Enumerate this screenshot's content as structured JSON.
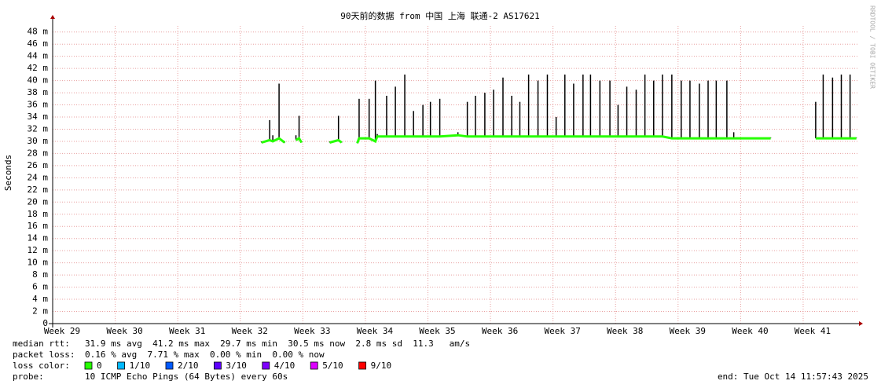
{
  "chart_data": {
    "type": "line",
    "title": "90天前的数据 from 中国 上海 联通-2 AS17621",
    "y_label": "Seconds",
    "watermark": "RRDTOOL / TOBI OETIKER",
    "grid": true,
    "xlim": [
      29,
      41.88
    ],
    "xticks": [
      {
        "value": 29,
        "label": "Week 29"
      },
      {
        "value": 30,
        "label": "Week 30"
      },
      {
        "value": 31,
        "label": "Week 31"
      },
      {
        "value": 32,
        "label": "Week 32"
      },
      {
        "value": 33,
        "label": "Week 33"
      },
      {
        "value": 34,
        "label": "Week 34"
      },
      {
        "value": 35,
        "label": "Week 35"
      },
      {
        "value": 36,
        "label": "Week 36"
      },
      {
        "value": 37,
        "label": "Week 37"
      },
      {
        "value": 38,
        "label": "Week 38"
      },
      {
        "value": 39,
        "label": "Week 39"
      },
      {
        "value": 40,
        "label": "Week 40"
      },
      {
        "value": 41,
        "label": "Week 41"
      }
    ],
    "ylim": [
      0,
      0.049
    ],
    "yticks": [
      0,
      {
        "value": 0.002,
        "label": "2 m"
      },
      {
        "value": 0.004,
        "label": "4 m"
      },
      {
        "value": 0.006,
        "label": "6 m"
      },
      {
        "value": 0.008,
        "label": "8 m"
      },
      {
        "value": 0.01,
        "label": "10 m"
      },
      {
        "value": 0.012,
        "label": "12 m"
      },
      {
        "value": 0.014,
        "label": "14 m"
      },
      {
        "value": 0.016,
        "label": "16 m"
      },
      {
        "value": 0.018,
        "label": "18 m"
      },
      {
        "value": 0.02,
        "label": "20 m"
      },
      {
        "value": 0.022,
        "label": "22 m"
      },
      {
        "value": 0.024,
        "label": "24 m"
      },
      {
        "value": 0.026,
        "label": "26 m"
      },
      {
        "value": 0.028,
        "label": "28 m"
      },
      {
        "value": 0.03,
        "label": "30 m"
      },
      {
        "value": 0.032,
        "label": "32 m"
      },
      {
        "value": 0.034,
        "label": "34 m"
      },
      {
        "value": 0.036,
        "label": "36 m"
      },
      {
        "value": 0.038,
        "label": "38 m"
      },
      {
        "value": 0.04,
        "label": "40 m"
      },
      {
        "value": 0.042,
        "label": "42 m"
      },
      {
        "value": 0.044,
        "label": "44 m"
      },
      {
        "value": 0.046,
        "label": "46 m"
      },
      {
        "value": 0.048,
        "label": "48 m"
      }
    ],
    "x": [
      32.34,
      32.47,
      32.52,
      32.62,
      32.71,
      32.8,
      32.89,
      32.94,
      32.98,
      33.2,
      33.43,
      33.57,
      33.62,
      33.75,
      33.87,
      33.9,
      34.06,
      34.16,
      34.19,
      34.34,
      34.48,
      34.63,
      34.77,
      34.92,
      35.04,
      35.19,
      35.48,
      35.63,
      35.76,
      35.91,
      36.05,
      36.2,
      36.34,
      36.47,
      36.61,
      36.76,
      36.91,
      37.05,
      37.19,
      37.33,
      37.48,
      37.6,
      37.75,
      37.91,
      38.04,
      38.18,
      38.33,
      38.47,
      38.61,
      38.75,
      38.9,
      39.05,
      39.19,
      39.34,
      39.48,
      39.61,
      39.78,
      39.89,
      40.48,
      41.0,
      41.2,
      41.32,
      41.47,
      41.61,
      41.75,
      41.85
    ],
    "series": [
      {
        "color": "#26ff00",
        "values": [
          0.0298,
          0.0302,
          0.03,
          0.0305,
          0.0298,
          null,
          0.0302,
          0.0305,
          0.0298,
          null,
          0.0298,
          0.0302,
          0.0298,
          null,
          0.0297,
          0.0305,
          0.0305,
          0.03,
          0.0308,
          0.0308,
          0.0308,
          0.0308,
          0.0308,
          0.0308,
          0.0308,
          0.0308,
          0.031,
          0.0308,
          0.0308,
          0.0308,
          0.0308,
          0.0308,
          0.0308,
          0.0308,
          0.0308,
          0.0308,
          0.0308,
          0.0308,
          0.0308,
          0.0308,
          0.0308,
          0.0308,
          0.0308,
          0.0308,
          0.0308,
          0.0308,
          0.0308,
          0.0308,
          0.0308,
          0.0308,
          0.0305,
          0.0305,
          0.0305,
          0.0305,
          0.0305,
          0.0305,
          0.0305,
          0.0305,
          0.0305,
          null,
          0.0305,
          0.0305,
          0.0305,
          0.0305,
          0.0305,
          0.0305
        ]
      },
      {
        "color": "#000000",
        "values": [
          0.03,
          0.0335,
          0.031,
          0.0395,
          0.03,
          null,
          0.031,
          0.0342,
          0.03,
          null,
          0.03,
          0.0342,
          0.03,
          null,
          0.03,
          0.037,
          0.037,
          0.04,
          0.0312,
          0.0375,
          0.039,
          0.041,
          0.035,
          0.036,
          0.0365,
          0.037,
          0.0315,
          0.0365,
          0.0375,
          0.038,
          0.0385,
          0.0405,
          0.0375,
          0.0365,
          0.041,
          0.04,
          0.041,
          0.034,
          0.041,
          0.0395,
          0.041,
          0.041,
          0.04,
          0.04,
          0.036,
          0.039,
          0.0385,
          0.041,
          0.04,
          0.041,
          0.041,
          0.04,
          0.04,
          0.0395,
          0.04,
          0.04,
          0.04,
          0.0315,
          0.0306,
          null,
          0.0365,
          0.041,
          0.0405,
          0.041,
          0.041,
          0.0306
        ]
      }
    ],
    "stats": [
      {
        "label": "median rtt:",
        "text": "31.9 ms avg  41.2 ms max  29.7 ms min  30.5 ms now  2.8 ms sd  11.3   am/s"
      },
      {
        "label": "packet loss:",
        "text": "0.16 % avg  7.71 % max  0.00 % min  0.00 % now"
      }
    ],
    "loss_legend": {
      "label": "loss color:",
      "items": [
        {
          "label": "0",
          "color": "#26ff00"
        },
        {
          "label": "1/10",
          "color": "#00b8ff"
        },
        {
          "label": "2/10",
          "color": "#0059ff"
        },
        {
          "label": "3/10",
          "color": "#5e00ff"
        },
        {
          "label": "4/10",
          "color": "#7e00ff"
        },
        {
          "label": "5/10",
          "color": "#dd00ff"
        },
        {
          "label": "9/10",
          "color": "#ff0000"
        }
      ]
    },
    "probe": {
      "label": "probe:",
      "text": "10 ICMP Echo Pings (64 Bytes) every 60s"
    },
    "end": "end: Tue Oct 14 11:57:43 2025"
  }
}
